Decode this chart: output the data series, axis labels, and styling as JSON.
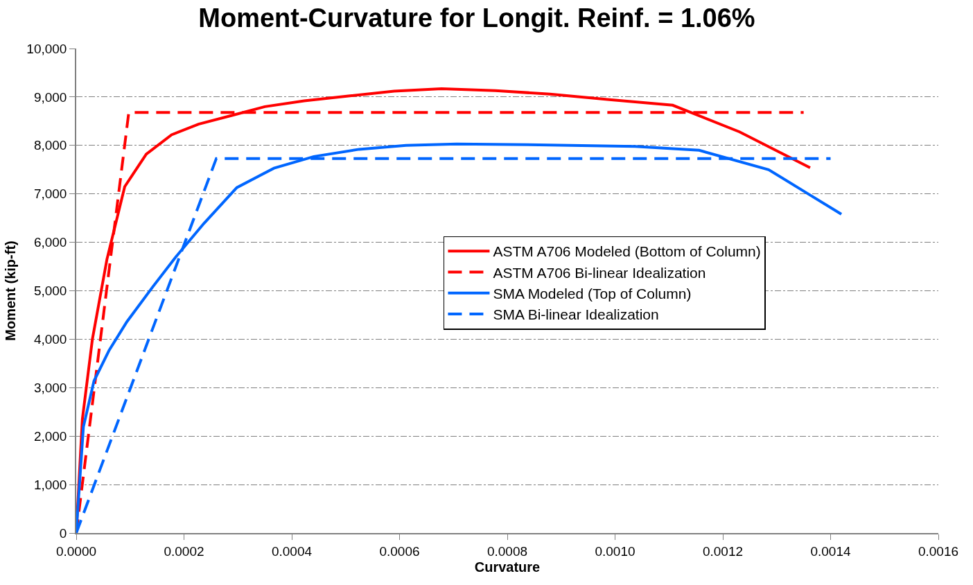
{
  "chart_data": {
    "type": "line",
    "title": "Moment-Curvature for Longit. Reinf. = 1.06%",
    "xlabel": "Curvature",
    "ylabel": "Moment (kip-ft)",
    "xlim": [
      0,
      0.0016
    ],
    "ylim": [
      0,
      10000
    ],
    "xticks": [
      {
        "value": 0,
        "label": "0.0000"
      },
      {
        "value": 0.0002,
        "label": "0.0002"
      },
      {
        "value": 0.0004,
        "label": "0.0004"
      },
      {
        "value": 0.0006,
        "label": "0.0006"
      },
      {
        "value": 0.0008,
        "label": "0.0008"
      },
      {
        "value": 0.001,
        "label": "0.0010"
      },
      {
        "value": 0.0012,
        "label": "0.0012"
      },
      {
        "value": 0.0014,
        "label": "0.0014"
      },
      {
        "value": 0.0016,
        "label": "0.0016"
      }
    ],
    "yticks": [
      0,
      {
        "value": 1000,
        "label": "1,000"
      },
      {
        "value": 2000,
        "label": "2,000"
      },
      {
        "value": 3000,
        "label": "3,000"
      },
      {
        "value": 4000,
        "label": "4,000"
      },
      {
        "value": 5000,
        "label": "5,000"
      },
      {
        "value": 6000,
        "label": "6,000"
      },
      {
        "value": 7000,
        "label": "7,000"
      },
      {
        "value": 8000,
        "label": "8,000"
      },
      {
        "value": 9000,
        "label": "9,000"
      },
      {
        "value": 10000,
        "label": "10,000"
      }
    ],
    "grid": "y",
    "legend": "center",
    "marker": "none",
    "series": [
      {
        "name": "ASTM A706 Modeled (Bottom of Column)",
        "color": "#ff0000",
        "line_style": "solid",
        "x": [
          0,
          1.14e-05,
          3e-05,
          5.7e-05,
          9e-05,
          0.00013,
          0.000177,
          0.000227,
          0.000289,
          0.00035,
          0.000423,
          0.000505,
          0.00059,
          0.000678,
          0.000778,
          0.000879,
          0.000993,
          0.001107,
          0.001231,
          0.001362
        ],
        "values": [
          0,
          2350,
          4000,
          5650,
          7150,
          7820,
          8220,
          8440,
          8620,
          8800,
          8920,
          9020,
          9120,
          9170,
          9130,
          9060,
          8940,
          8830,
          8280,
          7540
        ]
      },
      {
        "name": "ASTM A706 Bi-linear Idealization",
        "color": "#ff0000",
        "line_style": "dashed",
        "x": [
          0,
          9.75e-05,
          0.00135
        ],
        "values": [
          0,
          8680,
          8680
        ]
      },
      {
        "name": "SMA Modeled (Top of Column)",
        "color": "#0066ff",
        "line_style": "solid",
        "x": [
          0,
          1.33e-05,
          3.3e-05,
          6.1e-05,
          9.4e-05,
          0.000142,
          0.000185,
          0.000237,
          0.000298,
          0.000367,
          0.000441,
          0.000525,
          0.000612,
          0.000706,
          0.000807,
          0.001037,
          0.001156,
          0.001285,
          0.001354,
          0.00142
        ],
        "values": [
          0,
          2190,
          3140,
          3770,
          4360,
          5080,
          5700,
          6390,
          7130,
          7530,
          7770,
          7920,
          8000,
          8030,
          8020,
          7980,
          7900,
          7500,
          7030,
          6580
        ]
      },
      {
        "name": "SMA Bi-linear Idealization",
        "color": "#0066ff",
        "line_style": "dashed",
        "x": [
          0,
          0.00026,
          0.0014
        ],
        "values": [
          0,
          7730,
          7730
        ]
      }
    ]
  }
}
